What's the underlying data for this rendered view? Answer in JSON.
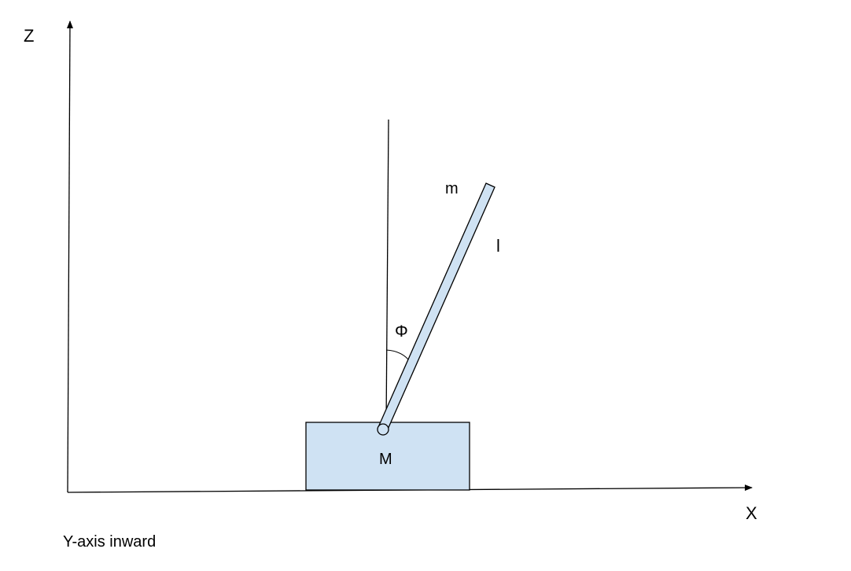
{
  "axes": {
    "z_label": "Z",
    "x_label": "X",
    "y_note": "Y-axis inward"
  },
  "cart": {
    "label": "M"
  },
  "pendulum": {
    "mass_label": "m",
    "length_label": "l",
    "angle_label": "Φ"
  },
  "colors": {
    "fill": "#cfe2f3",
    "stroke": "#000000"
  }
}
